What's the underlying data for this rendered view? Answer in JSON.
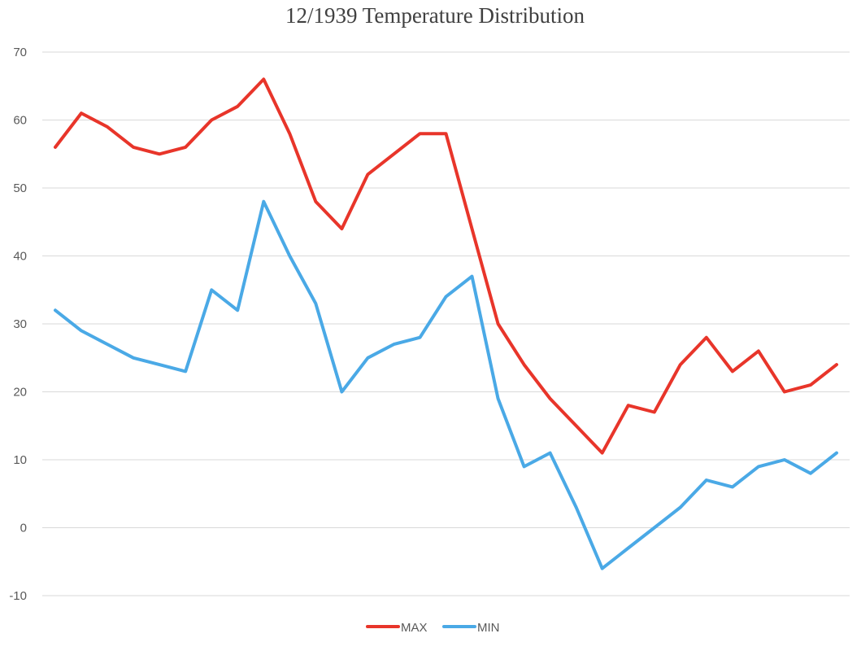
{
  "chart_data": {
    "type": "line",
    "title": "12/1939 Temperature Distribution",
    "xlabel": "",
    "ylabel": "",
    "ylim": [
      -10,
      70
    ],
    "yticks": [
      70,
      60,
      50,
      40,
      30,
      20,
      10,
      0,
      -10
    ],
    "grid": true,
    "legend": "bottom",
    "x": [
      1,
      2,
      3,
      4,
      5,
      6,
      7,
      8,
      9,
      10,
      11,
      12,
      13,
      14,
      15,
      16,
      17,
      18,
      19,
      20,
      21,
      22,
      23,
      24,
      25,
      26,
      27,
      28,
      29,
      30,
      31
    ],
    "series": [
      {
        "name": "MAX",
        "color": "#e8352a",
        "values": [
          56,
          61,
          59,
          56,
          55,
          56,
          60,
          62,
          66,
          58,
          48,
          44,
          52,
          55,
          58,
          58,
          44,
          30,
          24,
          19,
          15,
          11,
          18,
          17,
          24,
          28,
          23,
          26,
          20,
          21,
          24
        ]
      },
      {
        "name": "MIN",
        "color": "#4aa9e6",
        "values": [
          32,
          29,
          27,
          25,
          24,
          23,
          35,
          32,
          48,
          40,
          33,
          20,
          25,
          27,
          28,
          34,
          37,
          19,
          9,
          11,
          3,
          -6,
          -3,
          0,
          3,
          7,
          6,
          9,
          10,
          8,
          11
        ]
      }
    ]
  }
}
